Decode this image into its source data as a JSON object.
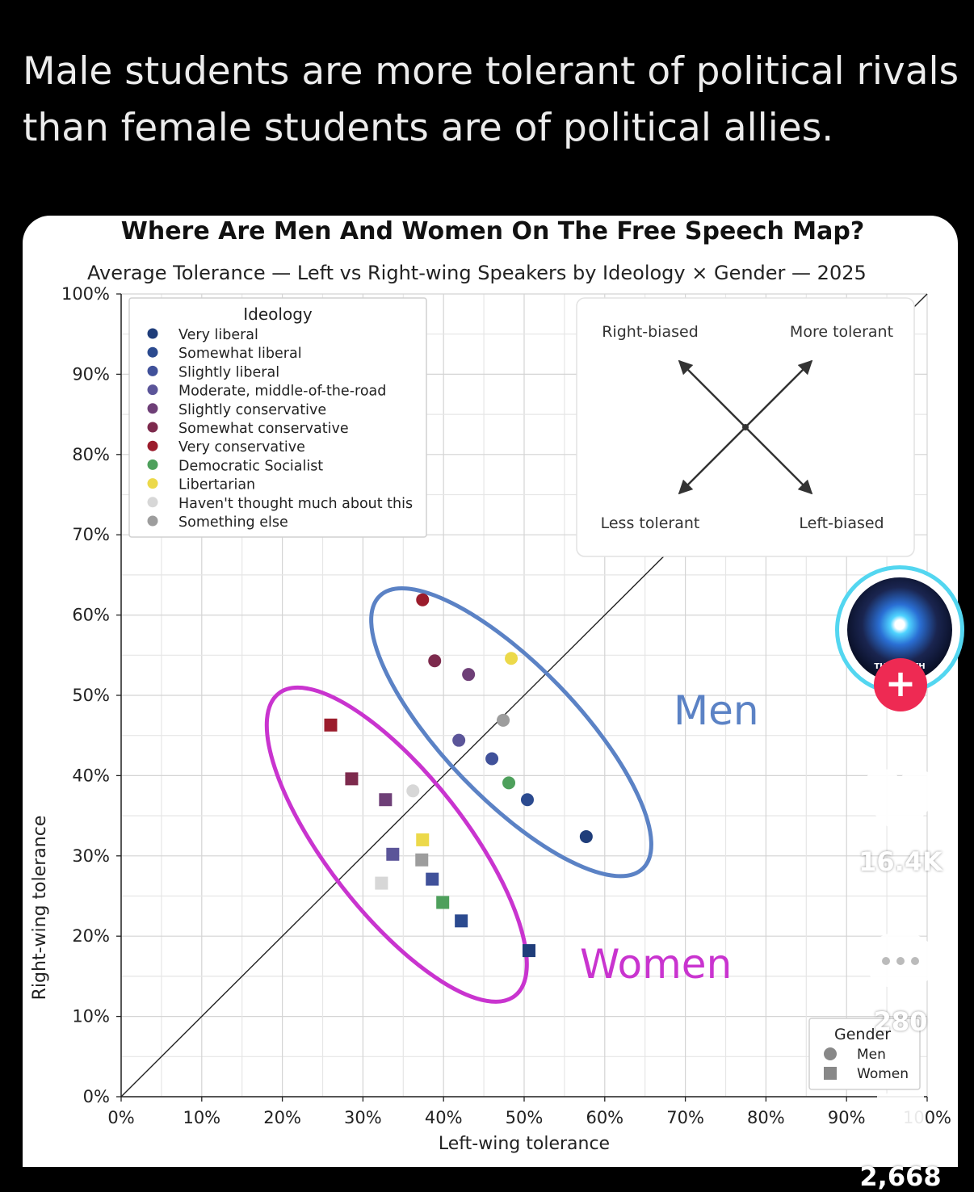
{
  "post": {
    "caption_line1": "Male students are more tolerant of political rivals",
    "caption_line2": "than female students are of political allies."
  },
  "chart_data": {
    "type": "scatter",
    "title": "Where Are Men And Women On The Free Speech Map?",
    "subtitle": "Average Tolerance — Left vs Right-wing Speakers by Ideology × Gender — 2025",
    "xlabel": "Left-wing tolerance",
    "ylabel": "Right-wing tolerance",
    "xlim": [
      0,
      100
    ],
    "ylim": [
      0,
      100
    ],
    "x_ticks": [
      "0%",
      "10%",
      "20%",
      "30%",
      "40%",
      "50%",
      "60%",
      "70%",
      "80%",
      "90%",
      "100%"
    ],
    "y_ticks": [
      "0%",
      "10%",
      "20%",
      "30%",
      "40%",
      "50%",
      "60%",
      "70%",
      "80%",
      "90%",
      "100%"
    ],
    "grid": true,
    "diagonal_reference_line": true,
    "legend_ideology": {
      "title": "Ideology",
      "placement": "top-left",
      "items": [
        {
          "label": "Very liberal",
          "color": "#1f3d7a"
        },
        {
          "label": "Somewhat liberal",
          "color": "#2b4a8f"
        },
        {
          "label": "Slightly liberal",
          "color": "#40519a"
        },
        {
          "label": "Moderate, middle-of-the-road",
          "color": "#5b5599"
        },
        {
          "label": "Slightly conservative",
          "color": "#6e3f77"
        },
        {
          "label": "Somewhat conservative",
          "color": "#7d2a4d"
        },
        {
          "label": "Very conservative",
          "color": "#9b1c2c"
        },
        {
          "label": "Democratic Socialist",
          "color": "#4ea05c"
        },
        {
          "label": "Libertarian",
          "color": "#ecd94a"
        },
        {
          "label": "Haven't thought much about this",
          "color": "#d7d7d7"
        },
        {
          "label": "Something else",
          "color": "#9d9d9d"
        }
      ]
    },
    "legend_gender": {
      "title": "Gender",
      "placement": "bottom-right",
      "items": [
        {
          "label": "Men",
          "marker": "circle"
        },
        {
          "label": "Women",
          "marker": "square"
        }
      ]
    },
    "direction_key": {
      "top_left": "Right-biased",
      "top_right": "More tolerant",
      "bottom_left": "Less tolerant",
      "bottom_right": "Left-biased"
    },
    "group_labels": [
      {
        "text": "Men",
        "color": "#5b82c5"
      },
      {
        "text": "Women",
        "color": "#c934cf"
      }
    ],
    "series": [
      {
        "name": "Men",
        "marker": "circle",
        "points": [
          {
            "ideology": "Very liberal",
            "x": 57.7,
            "y": 32.4
          },
          {
            "ideology": "Somewhat liberal",
            "x": 50.4,
            "y": 37.0
          },
          {
            "ideology": "Slightly liberal",
            "x": 46.0,
            "y": 42.1
          },
          {
            "ideology": "Moderate, middle-of-the-road",
            "x": 41.9,
            "y": 44.4
          },
          {
            "ideology": "Slightly conservative",
            "x": 43.1,
            "y": 52.6
          },
          {
            "ideology": "Somewhat conservative",
            "x": 38.9,
            "y": 54.3
          },
          {
            "ideology": "Very conservative",
            "x": 37.4,
            "y": 61.9
          },
          {
            "ideology": "Democratic Socialist",
            "x": 48.1,
            "y": 39.1
          },
          {
            "ideology": "Libertarian",
            "x": 48.4,
            "y": 54.6
          },
          {
            "ideology": "Haven't thought much about this",
            "x": 36.2,
            "y": 38.1
          },
          {
            "ideology": "Something else",
            "x": 47.4,
            "y": 46.9
          }
        ]
      },
      {
        "name": "Women",
        "marker": "square",
        "points": [
          {
            "ideology": "Very liberal",
            "x": 50.6,
            "y": 18.2
          },
          {
            "ideology": "Somewhat liberal",
            "x": 42.2,
            "y": 21.9
          },
          {
            "ideology": "Slightly liberal",
            "x": 38.6,
            "y": 27.1
          },
          {
            "ideology": "Moderate, middle-of-the-road",
            "x": 33.7,
            "y": 30.2
          },
          {
            "ideology": "Slightly conservative",
            "x": 32.8,
            "y": 37.0
          },
          {
            "ideology": "Somewhat conservative",
            "x": 28.6,
            "y": 39.6
          },
          {
            "ideology": "Very conservative",
            "x": 26.0,
            "y": 46.3
          },
          {
            "ideology": "Democratic Socialist",
            "x": 39.9,
            "y": 24.2
          },
          {
            "ideology": "Libertarian",
            "x": 37.4,
            "y": 32.0
          },
          {
            "ideology": "Haven't thought much about this",
            "x": 32.3,
            "y": 26.6
          },
          {
            "ideology": "Something else",
            "x": 37.3,
            "y": 29.5
          }
        ]
      }
    ],
    "ellipses": [
      {
        "group": "Men",
        "cx": 48.4,
        "cy": 45.4,
        "rx": 23.5,
        "ry": 8.3,
        "rotation_deg": 46,
        "color": "#5b82c5"
      },
      {
        "group": "Women",
        "cx": 34.2,
        "cy": 31.4,
        "rx": 23.8,
        "ry": 8.6,
        "rotation_deg": 52,
        "color": "#c934cf"
      }
    ]
  },
  "side_actions": {
    "avatar_text": "THE TRUTH",
    "follow_symbol": "+",
    "like_count": "16.4K",
    "comment_count": "280",
    "save_count": "2,668"
  },
  "colors": {
    "page_background": "#000000",
    "card_background": "#ffffff",
    "like_fill": "#ffffff",
    "follow_button": "#ee2a53"
  }
}
